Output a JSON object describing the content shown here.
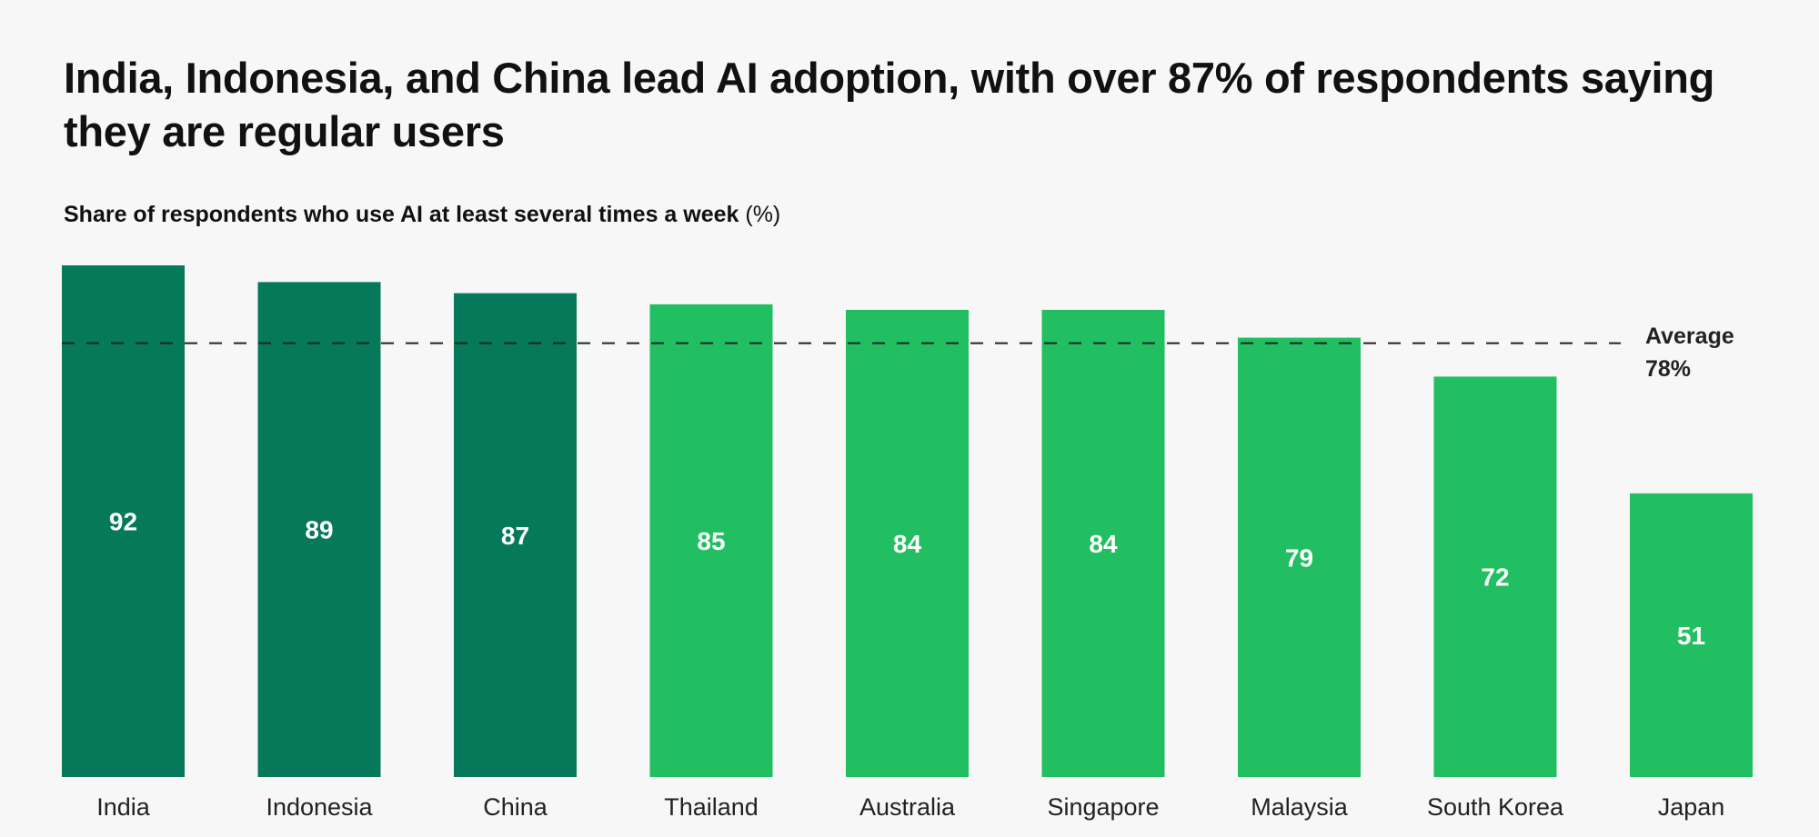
{
  "chart_data": {
    "type": "bar",
    "title": "India, Indonesia, and China lead AI adoption, with over 87% of respondents saying they are regular users",
    "subtitle": "Share of respondents who use AI at least several times a week",
    "subtitle_unit": "(%)",
    "categories": [
      "India",
      "Indonesia",
      "China",
      "Thailand",
      "Australia",
      "Singapore",
      "Malaysia",
      "South Korea",
      "Japan"
    ],
    "values": [
      92,
      89,
      87,
      85,
      84,
      84,
      79,
      72,
      51
    ],
    "highlighted": [
      true,
      true,
      true,
      false,
      false,
      false,
      false,
      false,
      false
    ],
    "ylim": [
      0,
      92
    ],
    "grid": false,
    "reference_line": {
      "label": "Average",
      "value_label": "78%",
      "value": 78,
      "style": "dashed"
    },
    "colors": {
      "highlight": "#05795a",
      "default": "#22be62",
      "background": "#f7f7f7",
      "value_label": "#ffffff"
    }
  }
}
